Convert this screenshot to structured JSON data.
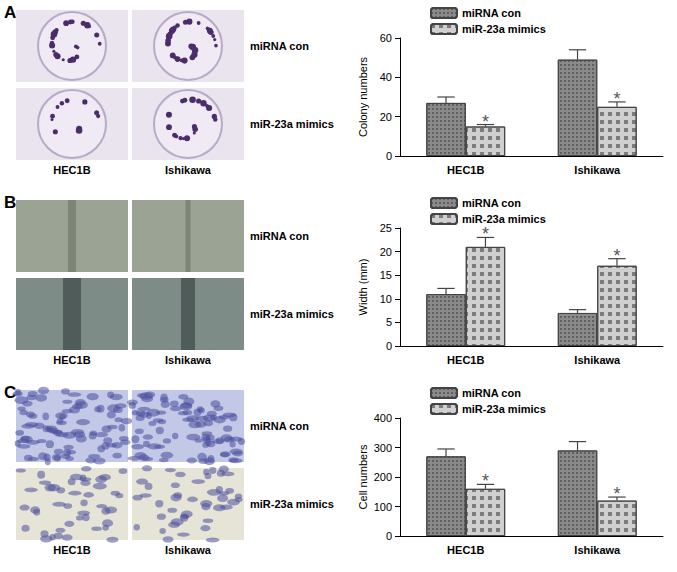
{
  "chart_data": [
    {
      "type": "bar",
      "title": "A",
      "ylabel": "Colony numbers",
      "categories": [
        "HEC1B",
        "Ishikawa"
      ],
      "series": [
        {
          "name": "miRNA con",
          "color": "#8a8a8a",
          "values": [
            27,
            49
          ],
          "errors": [
            3,
            5
          ]
        },
        {
          "name": "miR-23a mimics",
          "color": "#d0d0d0",
          "values": [
            15,
            25
          ],
          "errors": [
            1,
            2.5
          ],
          "annotations": [
            "*",
            "*"
          ]
        }
      ],
      "ylim": [
        0,
        60
      ],
      "yticks": [
        0,
        20,
        40,
        60
      ],
      "grid": false,
      "legend": "top"
    },
    {
      "type": "bar",
      "title": "B",
      "ylabel": "Width (mm)",
      "categories": [
        "HEC1B",
        "Ishikawa"
      ],
      "series": [
        {
          "name": "miRNA con",
          "color": "#8a8a8a",
          "values": [
            11,
            7
          ],
          "errors": [
            1.2,
            0.7
          ]
        },
        {
          "name": "miR-23a mimics",
          "color": "#d0d0d0",
          "values": [
            21,
            17
          ],
          "errors": [
            2,
            1.5
          ],
          "annotations": [
            "*",
            "*"
          ]
        }
      ],
      "ylim": [
        0,
        25
      ],
      "yticks": [
        0,
        5,
        10,
        15,
        20,
        25
      ],
      "grid": false,
      "legend": "top"
    },
    {
      "type": "bar",
      "title": "C",
      "ylabel": "Cell numbers",
      "categories": [
        "HEC1B",
        "Ishikawa"
      ],
      "series": [
        {
          "name": "miRNA con",
          "color": "#8a8a8a",
          "values": [
            270,
            290
          ],
          "errors": [
            25,
            30
          ]
        },
        {
          "name": "miR-23a mimics",
          "color": "#d0d0d0",
          "values": [
            160,
            120
          ],
          "errors": [
            15,
            12
          ],
          "annotations": [
            "*",
            "*"
          ]
        }
      ],
      "ylim": [
        0,
        400
      ],
      "yticks": [
        0,
        100,
        200,
        300,
        400
      ],
      "grid": false,
      "legend": "top"
    }
  ],
  "photos": [
    {
      "kind": "dish",
      "row_labels": [
        "miRNA con",
        "miR-23a mimics"
      ],
      "column_labels": [
        "HEC1B",
        "Ishikawa"
      ]
    },
    {
      "kind": "wound",
      "row_labels": [
        "miRNA con",
        "miR-23a mimics"
      ],
      "column_labels": [
        "HEC1B",
        "Ishikawa"
      ]
    },
    {
      "kind": "transwell",
      "row_labels": [
        "miRNA con",
        "miR-23a mimics"
      ],
      "column_labels": [
        "HEC1B",
        "Ishikawa"
      ]
    }
  ]
}
